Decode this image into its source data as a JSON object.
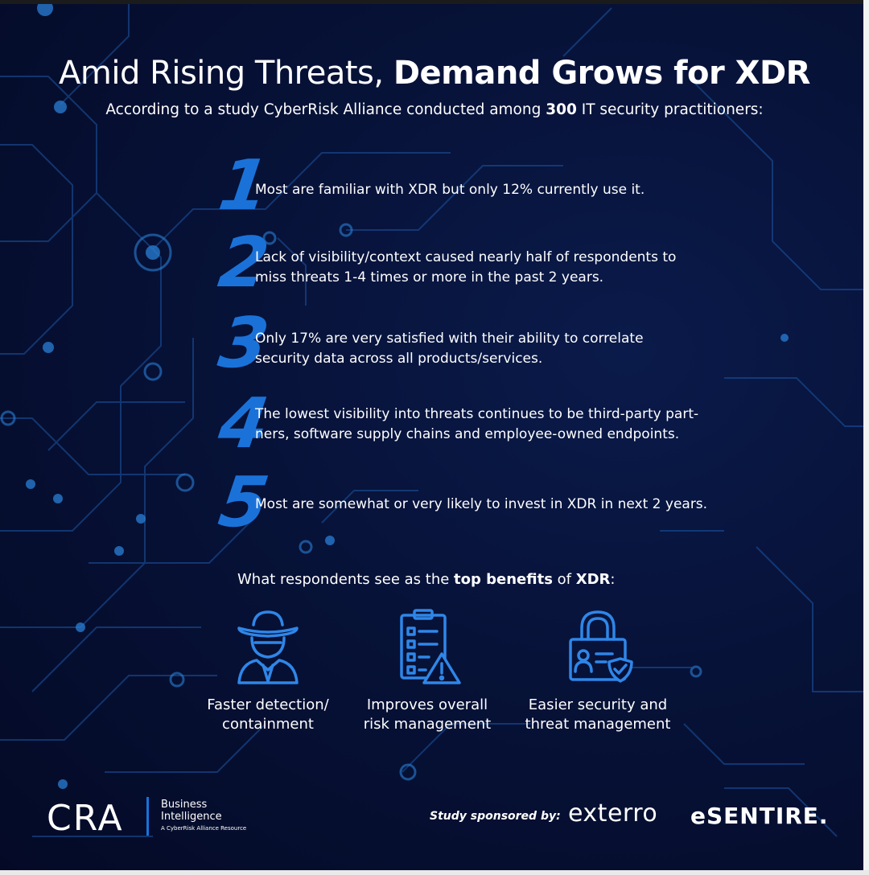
{
  "header": {
    "title_light": "Amid Rising Threats, ",
    "title_bold": "Demand Grows for XDR",
    "subtitle_pre": "According to a study CyberRisk Alliance conducted among ",
    "subtitle_bold": "300",
    "subtitle_post": " IT security practitioners:"
  },
  "findings": [
    {
      "number": "1",
      "lines": [
        "Most are familiar with XDR but only 12% currently use it."
      ]
    },
    {
      "number": "2",
      "lines": [
        "Lack of visibility/context caused nearly half of respondents to",
        "miss threats 1-4 times or more in the past 2 years."
      ]
    },
    {
      "number": "3",
      "lines": [
        "Only 17% are very satisfied with their ability to correlate",
        "security data across all products/services."
      ]
    },
    {
      "number": "4",
      "lines": [
        "The lowest visibility into threats continues to be third-party part-",
        "ners, software supply chains and employee-owned endpoints."
      ]
    },
    {
      "number": "5",
      "lines": [
        "Most are somewhat or very likely to invest in XDR in next 2 years."
      ]
    }
  ],
  "benefits": {
    "heading_pre": "What respondents see as the ",
    "heading_bold1": "top benefits",
    "heading_mid": " of ",
    "heading_bold2": "XDR",
    "heading_post": ":",
    "items": [
      {
        "icon": "spy-agent-icon",
        "label": "Faster detection/\ncontainment"
      },
      {
        "icon": "checklist-warning-icon",
        "label": "Improves overall\nrisk management"
      },
      {
        "icon": "padlock-id-shield-icon",
        "label": "Easier security and\nthreat management"
      }
    ]
  },
  "footer": {
    "cra_logo": "CRA",
    "business_line1": "Business",
    "business_line2": "Intelligence",
    "business_sub": "A CyberRisk Alliance Resource",
    "sponsor_label": "Study sponsored by:",
    "sponsor_1": "exterro",
    "sponsor_2": "eSENTIRE."
  },
  "colors": {
    "background": "#061036",
    "accent_blue": "#1a72d9",
    "icon_blue": "#2f86e8",
    "circuit": "#1f5fb0"
  }
}
